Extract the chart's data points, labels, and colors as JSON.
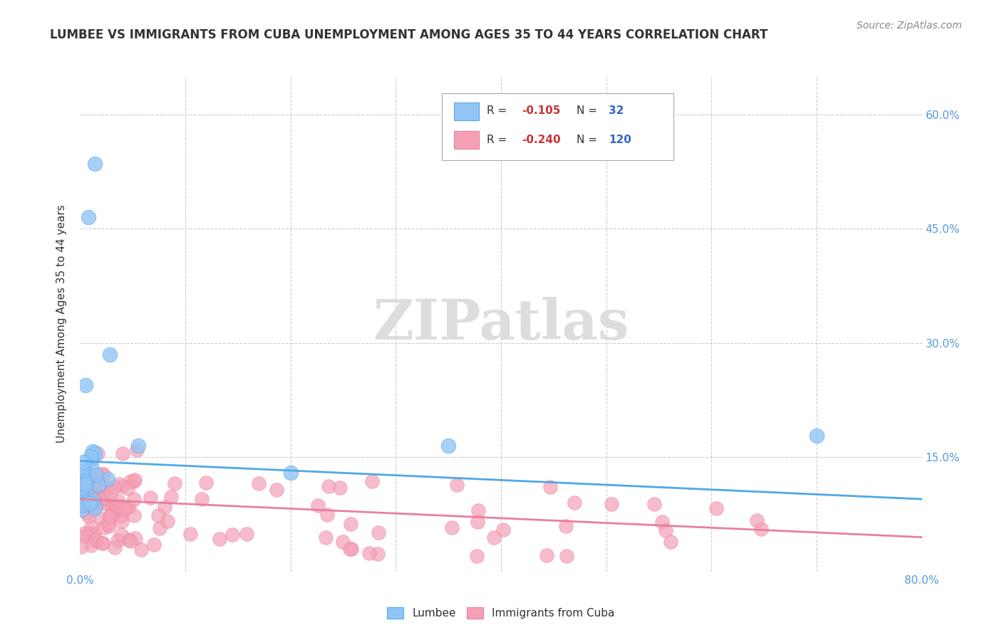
{
  "title": "LUMBEE VS IMMIGRANTS FROM CUBA UNEMPLOYMENT AMONG AGES 35 TO 44 YEARS CORRELATION CHART",
  "source_text": "Source: ZipAtlas.com",
  "ylabel": "Unemployment Among Ages 35 to 44 years",
  "xlim": [
    0.0,
    0.8
  ],
  "ylim": [
    0.0,
    0.65
  ],
  "xticks": [
    0.0,
    0.1,
    0.2,
    0.3,
    0.4,
    0.5,
    0.6,
    0.7,
    0.8
  ],
  "yticks": [
    0.0,
    0.15,
    0.3,
    0.45,
    0.6
  ],
  "lumbee_color": "#92c5f5",
  "cuba_color": "#f5a0b5",
  "lumbee_edge_color": "#4fa8e8",
  "cuba_edge_color": "#e87fa0",
  "lumbee_line_color": "#4fa8e8",
  "cuba_line_color": "#e87fa0",
  "background_color": "#ffffff",
  "grid_color": "#cccccc",
  "title_color": "#333333",
  "axis_label_color": "#333333",
  "tick_color": "#5599dd",
  "watermark_color": "#dddddd",
  "lumbee_trendline_x": [
    0.0,
    0.8
  ],
  "lumbee_trendline_y": [
    0.145,
    0.095
  ],
  "cuba_trendline_x": [
    0.0,
    0.8
  ],
  "cuba_trendline_y": [
    0.095,
    0.045
  ],
  "legend_R_lumbee": "-0.105",
  "legend_N_lumbee": "32",
  "legend_R_cuba": "-0.240",
  "legend_N_cuba": "120"
}
